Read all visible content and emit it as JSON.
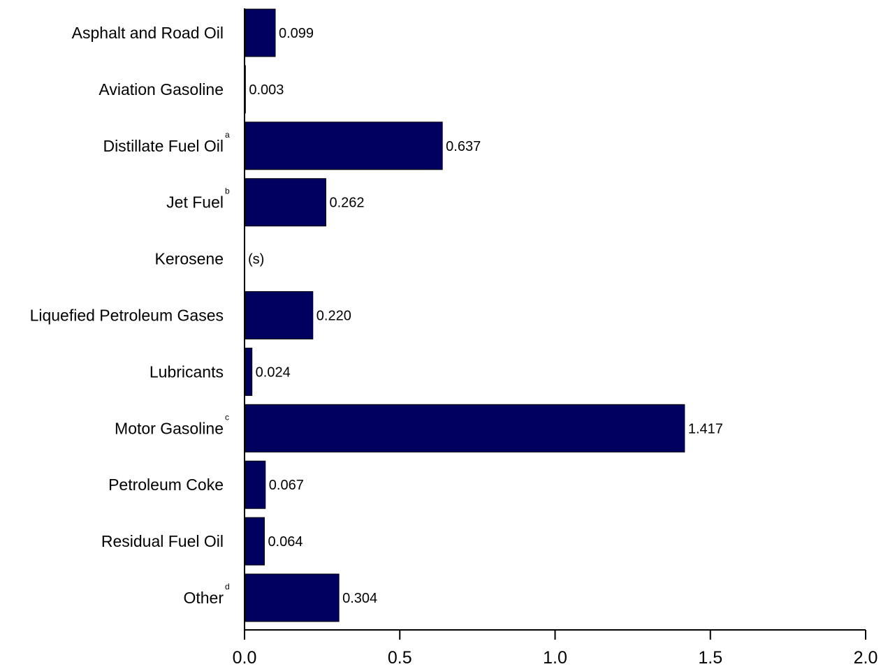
{
  "chart_data": {
    "type": "bar",
    "orientation": "horizontal",
    "title": "",
    "xlabel": "",
    "ylabel": "",
    "xlim": [
      0,
      2.0
    ],
    "grid": false,
    "bar_color": "#00005e",
    "x_ticks": [
      "0.0",
      "0.5",
      "1.0",
      "1.5",
      "2.0"
    ],
    "categories": [
      {
        "label": "Asphalt and Road Oil",
        "sup": "",
        "value": 0.099,
        "value_label": "0.099"
      },
      {
        "label": "Aviation Gasoline",
        "sup": "",
        "value": 0.003,
        "value_label": "0.003"
      },
      {
        "label": "Distillate Fuel Oil",
        "sup": "a",
        "value": 0.637,
        "value_label": "0.637"
      },
      {
        "label": "Jet Fuel",
        "sup": "b",
        "value": 0.262,
        "value_label": "0.262"
      },
      {
        "label": "Kerosene",
        "sup": "",
        "value": 0,
        "value_label": "(s)"
      },
      {
        "label": "Liquefied Petroleum Gases",
        "sup": "",
        "value": 0.22,
        "value_label": "0.220"
      },
      {
        "label": "Lubricants",
        "sup": "",
        "value": 0.024,
        "value_label": "0.024"
      },
      {
        "label": "Motor Gasoline",
        "sup": "c",
        "value": 1.417,
        "value_label": "1.417"
      },
      {
        "label": "Petroleum Coke",
        "sup": "",
        "value": 0.067,
        "value_label": "0.067"
      },
      {
        "label": "Residual Fuel Oil",
        "sup": "",
        "value": 0.064,
        "value_label": "0.064"
      },
      {
        "label": "Other",
        "sup": "d",
        "value": 0.304,
        "value_label": "0.304"
      }
    ]
  }
}
